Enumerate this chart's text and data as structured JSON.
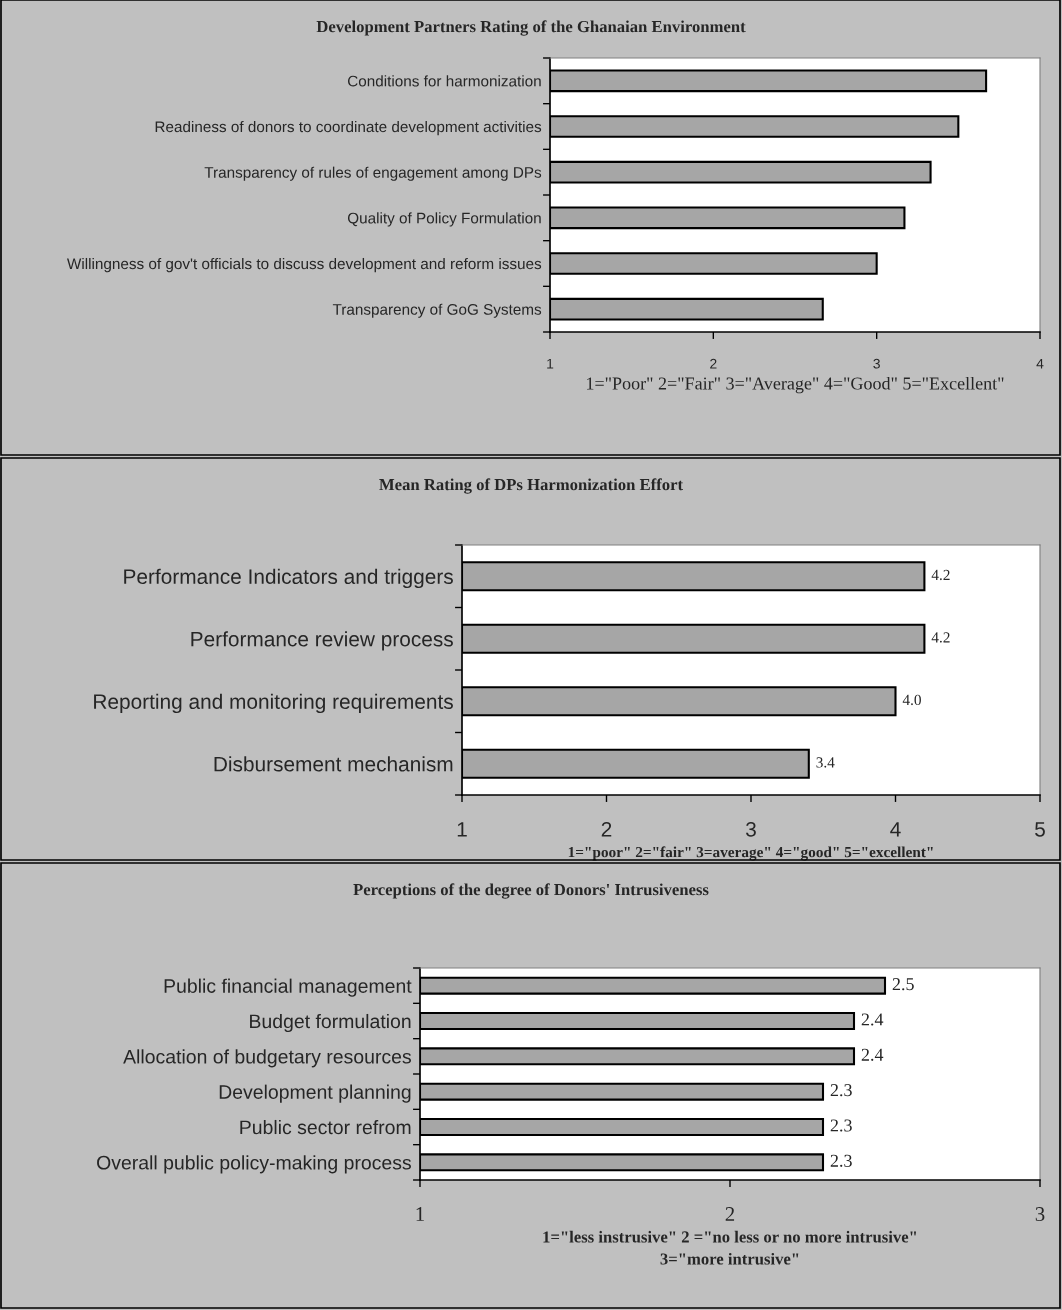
{
  "chart_data": [
    {
      "type": "bar",
      "orientation": "horizontal",
      "title": "Development Partners Rating of the Ghanaian Environment",
      "categories": [
        "Conditions for harmonization",
        "Readiness of donors to coordinate development activities",
        "Transparency of rules of engagement among DPs",
        "Quality of Policy Formulation",
        "Willingness of gov't officials to discuss development and reform issues",
        "Transparency of GoG Systems"
      ],
      "values": [
        3.67,
        3.5,
        3.33,
        3.17,
        3.0,
        2.67
      ],
      "color": "#a6a6a6",
      "xlim": [
        1,
        4
      ],
      "xticks": [
        1,
        2,
        3,
        4
      ],
      "xlabel": "1=\"Poor\" 2=\"Fair\" 3=\"Average\" 4=\"Good\" 5=\"Excellent\"",
      "grid": false
    },
    {
      "type": "bar",
      "orientation": "horizontal",
      "title": "Mean Rating of DPs Harmonization Effort",
      "categories": [
        "Performance Indicators and triggers",
        "Performance review process",
        "Reporting and monitoring requirements",
        "Disbursement mechanism"
      ],
      "values": [
        4.2,
        4.2,
        4.0,
        3.4
      ],
      "value_labels": [
        "4.2",
        "4.2",
        "4.0",
        "3.4"
      ],
      "color": "#a6a6a6",
      "xlim": [
        1,
        5
      ],
      "xticks": [
        1,
        2,
        3,
        4,
        5
      ],
      "xlabel": "1=\"poor\" 2=\"fair\" 3=average\" 4=\"good\" 5=\"excellent\"",
      "grid": false
    },
    {
      "type": "bar",
      "orientation": "horizontal",
      "title": "Perceptions of the degree of Donors' Intrusiveness",
      "categories": [
        "Public financial management",
        "Budget formulation",
        "Allocation of budgetary resources",
        "Development planning",
        "Public sector refrom",
        "Overall public policy-making process"
      ],
      "values": [
        2.5,
        2.4,
        2.4,
        2.3,
        2.3,
        2.3
      ],
      "value_labels": [
        "2.5",
        "2.4",
        "2.4",
        "2.3",
        "2.3",
        "2.3"
      ],
      "color": "#a6a6a6",
      "xlim": [
        1,
        3
      ],
      "xticks": [
        1,
        2,
        3
      ],
      "xlabel": "1=\"less instrusive\" 2 =\"no less or no more intrusive\"\n3=\"more intrusive\"",
      "grid": false
    }
  ]
}
